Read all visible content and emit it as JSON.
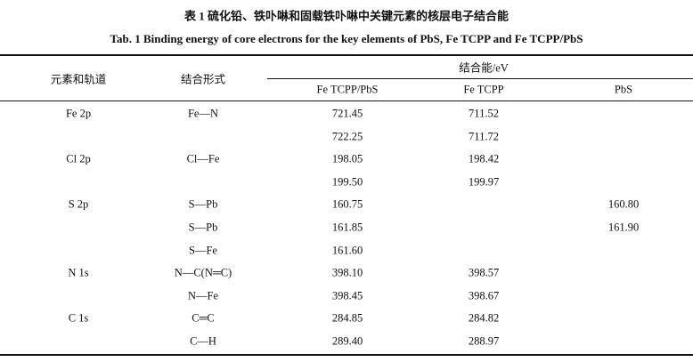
{
  "caption": {
    "zh": "表 1   硫化铅、铁卟啉和固载铁卟啉中关键元素的核层电子结合能",
    "en": "Tab. 1   Binding energy of core electrons for the key elements of PbS, Fe TCPP and Fe TCPP/PbS"
  },
  "table": {
    "header": {
      "element": "元素和轨道",
      "bond": "结合形式",
      "group": "结合能/eV",
      "sub": [
        "Fe TCPP/PbS",
        "Fe TCPP",
        "PbS"
      ]
    },
    "rows": [
      [
        "Fe 2p",
        "Fe—N",
        "721.45",
        "711.52",
        null
      ],
      [
        null,
        null,
        "722.25",
        "711.72",
        null
      ],
      [
        "Cl 2p",
        "Cl—Fe",
        "198.05",
        "198.42",
        null
      ],
      [
        null,
        null,
        "199.50",
        "199.97",
        null
      ],
      [
        "S 2p",
        "S—Pb",
        "160.75",
        null,
        "160.80"
      ],
      [
        null,
        "S—Pb",
        "161.85",
        null,
        "161.90"
      ],
      [
        null,
        "S—Fe",
        "161.60",
        null,
        null
      ],
      [
        "N 1s",
        "N—C(N═C)",
        "398.10",
        "398.57",
        null
      ],
      [
        null,
        "N—Fe",
        "398.45",
        "398.67",
        null
      ],
      [
        "C 1s",
        "C═C",
        "284.85",
        "284.82",
        null
      ],
      [
        null,
        "C—H",
        "289.40",
        "288.97",
        null
      ]
    ]
  }
}
